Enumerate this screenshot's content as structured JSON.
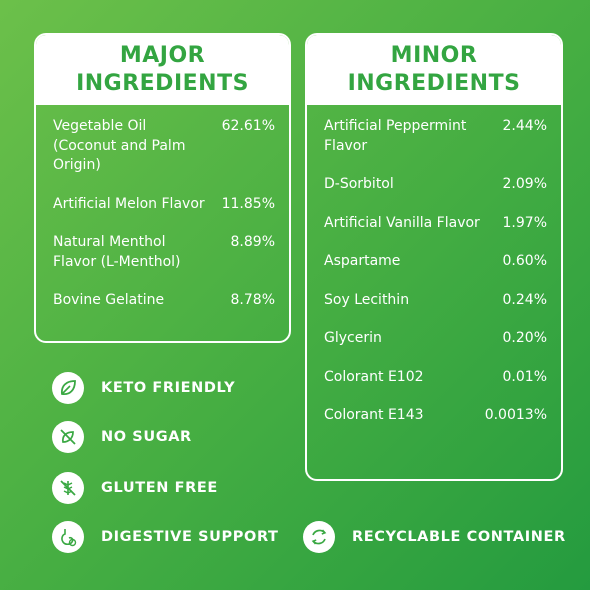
{
  "major": {
    "title_line1": "MAJOR",
    "title_line2": "INGREDIENTS",
    "items": [
      {
        "name": "Vegetable Oil (Coconut and Palm Origin)",
        "percent": "62.61%"
      },
      {
        "name": "Artificial Melon Flavor",
        "percent": "11.85%"
      },
      {
        "name": "Natural Menthol Flavor (L-Menthol)",
        "percent": "8.89%"
      },
      {
        "name": "Bovine Gelatine",
        "percent": "8.78%"
      }
    ]
  },
  "minor": {
    "title_line1": "MINOR",
    "title_line2": "INGREDIENTS",
    "items": [
      {
        "name": "Artificial Peppermint Flavor",
        "percent": "2.44%"
      },
      {
        "name": "D-Sorbitol",
        "percent": "2.09%"
      },
      {
        "name": "Artificial Vanilla Flavor",
        "percent": "1.97%"
      },
      {
        "name": "Aspartame",
        "percent": "0.60%"
      },
      {
        "name": "Soy Lecithin",
        "percent": "0.24%"
      },
      {
        "name": "Glycerin",
        "percent": "0.20%"
      },
      {
        "name": "Colorant E102",
        "percent": "0.01%"
      },
      {
        "name": "Colorant E143",
        "percent": "0.0013%"
      }
    ]
  },
  "badges": [
    {
      "label": "KETO FRIENDLY",
      "icon": "leaf-icon"
    },
    {
      "label": "NO SUGAR",
      "icon": "no-sugar-icon"
    },
    {
      "label": "GLUTEN FREE",
      "icon": "gluten-free-icon"
    },
    {
      "label": "DIGESTIVE SUPPORT",
      "icon": "stomach-icon"
    },
    {
      "label": "RECYCLABLE CONTAINER",
      "icon": "recycle-icon"
    }
  ],
  "colors": {
    "background_start": "#6cc04a",
    "background_end": "#249b3f",
    "header_text": "#33a541",
    "card_border": "#ffffff"
  }
}
